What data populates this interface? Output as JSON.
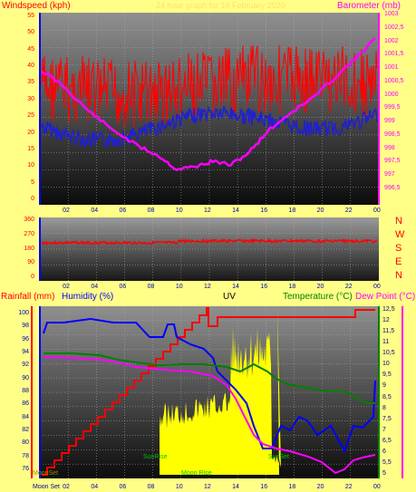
{
  "colors": {
    "bg": "#ffff88",
    "red": "#ff0000",
    "blue": "#0000ff",
    "magenta": "#ff00ff",
    "green": "#008000",
    "yellow": "#ffff00",
    "darkblue": "#000080"
  },
  "top": {
    "left_title": "Windspeed (kph)",
    "center_title": "24 hour graph for 10 February 2020",
    "right_title": "Barometer (mb)",
    "left_ticks": [
      "55",
      "50",
      "45",
      "40",
      "35",
      "30",
      "25",
      "20",
      "15",
      "10",
      "5",
      "0"
    ],
    "right_ticks": [
      "1003",
      "1002,5",
      "1002",
      "1001,5",
      "1001",
      "1000,5",
      "1000",
      "999,5",
      "999",
      "998,5",
      "998",
      "997,5",
      "997",
      "996,5"
    ],
    "x_ticks": [
      "02",
      "04",
      "06",
      "08",
      "10",
      "12",
      "14",
      "16",
      "18",
      "20",
      "22",
      "00"
    ]
  },
  "mid": {
    "ticks": [
      "360",
      "270",
      "180",
      "90",
      "0"
    ],
    "compass": [
      "N",
      "W",
      "S",
      "E",
      "N"
    ],
    "x_ticks": [
      "02",
      "04",
      "06",
      "08",
      "10",
      "12",
      "14",
      "16",
      "18",
      "20",
      "22",
      "00"
    ]
  },
  "bottom": {
    "rainfall_title": "Rainfall (mm)",
    "humidity_title": "Humidity (%)",
    "uv_title": "UV",
    "temperature_title": "Temperature (°C)",
    "dewpoint_title": "Dew Point (°C)",
    "left_ticks": [
      "100",
      "98",
      "96",
      "94",
      "92",
      "90",
      "88",
      "86",
      "84",
      "82",
      "80",
      "78",
      "76"
    ],
    "right_ticks": [
      "12,5",
      "12",
      "11,5",
      "11",
      "10,5",
      "10",
      "9,5",
      "9",
      "8,5",
      "8",
      "7,5",
      "7",
      "6,5",
      "6",
      "5,5",
      "5"
    ],
    "x_ticks": [
      "02",
      "04",
      "06",
      "08",
      "10",
      "12",
      "14",
      "16",
      "18",
      "20",
      "22",
      "00"
    ],
    "moon_set_label": "Moon Set",
    "moon_rise_label": "Moon Rise",
    "sun_rise_label": "SunRise",
    "sun_set_label": "SunSet",
    "moon_set_small": "MoonSet"
  }
}
